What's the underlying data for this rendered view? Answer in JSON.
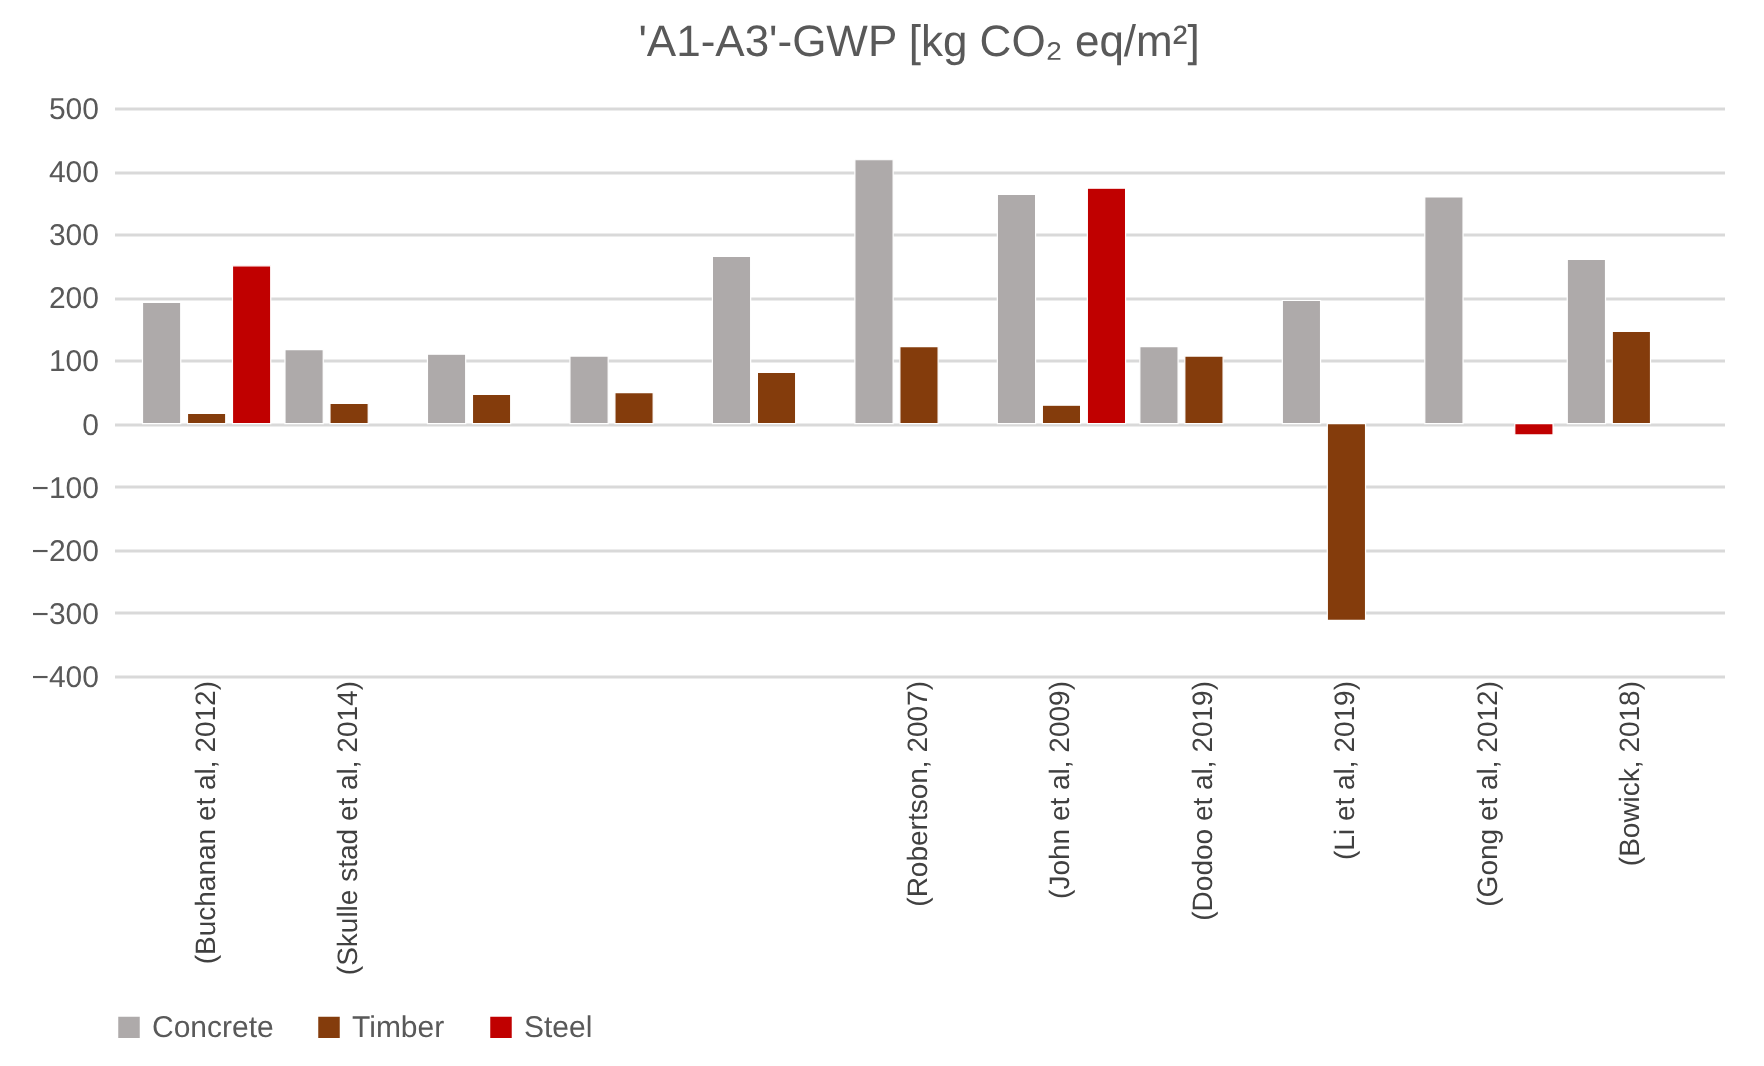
{
  "chart_data": {
    "type": "bar",
    "title": "'A1-A3'-GWP [kg CO₂ eq/m²]",
    "categories": [
      "(Buchanan et al, 2012)",
      "(Skulle stad et al, 2014)",
      null,
      null,
      null,
      "(Robertson, 2007)",
      "(John et al, 2009)",
      "(Dodoo et al, 2019)",
      "(Li et al, 2019)",
      "(Gong et al, 2012)",
      "(Bowick, 2018)"
    ],
    "series": [
      {
        "name": "Concrete",
        "color": "#aeaaaa",
        "values": [
          192,
          117,
          110,
          107,
          265,
          418,
          363,
          122,
          195,
          359,
          260
        ]
      },
      {
        "name": "Timber",
        "color": "#843c0c",
        "values": [
          16,
          32,
          46,
          49,
          81,
          122,
          29,
          107,
          -312,
          null,
          146
        ]
      },
      {
        "name": "Steel",
        "color": "#c00000",
        "values": [
          250,
          null,
          null,
          null,
          null,
          null,
          373,
          null,
          null,
          -18,
          null
        ]
      }
    ],
    "ylim": [
      -400,
      500
    ],
    "yticks": [
      -400,
      -300,
      -200,
      -100,
      0,
      100,
      200,
      300,
      400,
      500
    ],
    "grid": "y",
    "legend": "bottom"
  }
}
